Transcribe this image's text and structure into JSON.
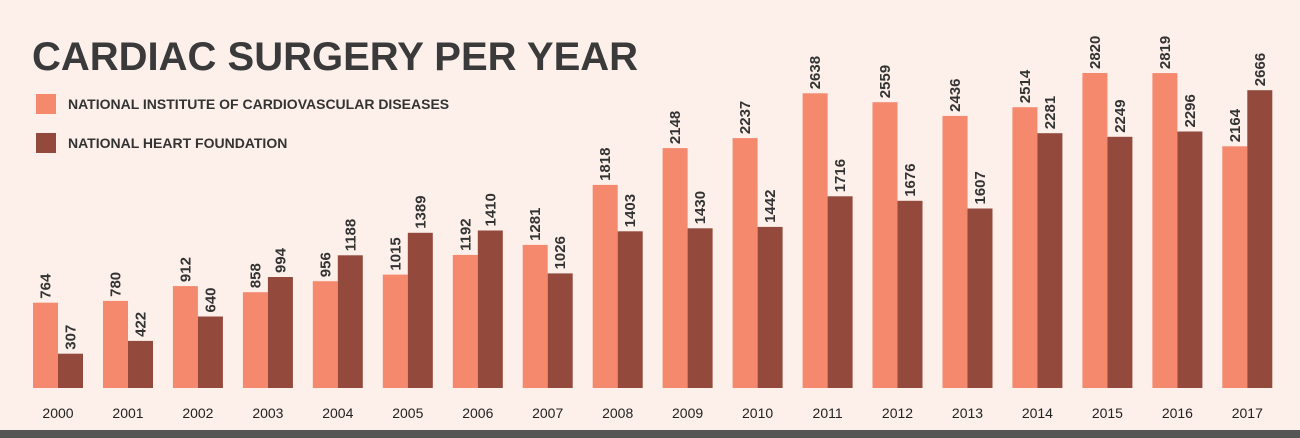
{
  "chart_data": {
    "type": "bar",
    "title": "CARDIAC SURGERY PER YEAR",
    "categories": [
      "2000",
      "2001",
      "2002",
      "2003",
      "2004",
      "2005",
      "2006",
      "2007",
      "2008",
      "2009",
      "2010",
      "2011",
      "2012",
      "2013",
      "2014",
      "2015",
      "2016",
      "2017"
    ],
    "series": [
      {
        "name": "NATIONAL INSTITUTE OF CARDIOVASCULAR DISEASES",
        "color": "#f4896e",
        "values": [
          764,
          780,
          912,
          858,
          956,
          1015,
          1192,
          1281,
          1818,
          2148,
          2237,
          2638,
          2559,
          2436,
          2514,
          2820,
          2819,
          2164
        ]
      },
      {
        "name": "NATIONAL HEART FOUNDATION",
        "color": "#93493b",
        "values": [
          307,
          422,
          640,
          994,
          1188,
          1389,
          1410,
          1026,
          1403,
          1430,
          1442,
          1716,
          1676,
          1607,
          2281,
          2249,
          2296,
          2666
        ]
      }
    ],
    "xlabel": "",
    "ylabel": "",
    "ylim": [
      0,
      2850
    ],
    "grid": false,
    "legend_position": "top-left",
    "data_labels": "rotated-above-bars",
    "colors": {
      "background": "#fdf0eb",
      "baseline": "#555555",
      "title": "#3a3a3a"
    }
  }
}
